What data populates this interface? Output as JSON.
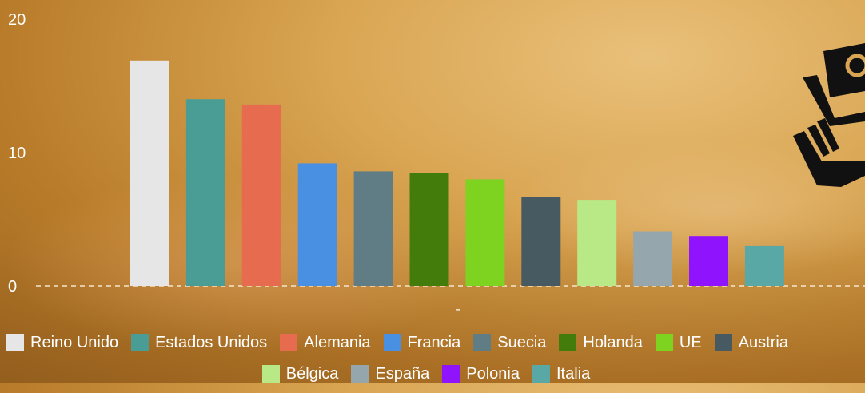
{
  "chart_data": {
    "type": "bar",
    "categories": [
      "Reino Unido",
      "Estados Unidos",
      "Alemania",
      "Francia",
      "Suecia",
      "Holanda",
      "UE",
      "Austria",
      "Bélgica",
      "España",
      "Polonia",
      "Italia"
    ],
    "values": [
      16.9,
      14.0,
      13.6,
      9.2,
      8.6,
      8.5,
      8.0,
      6.7,
      6.4,
      4.1,
      3.7,
      3.0
    ],
    "colors": [
      "#e6e6e6",
      "#4a9d95",
      "#e76c4f",
      "#4a90e2",
      "#607d86",
      "#437c0b",
      "#7ed321",
      "#485a61",
      "#b8e986",
      "#96a6ad",
      "#9013fe",
      "#5aa8a6"
    ],
    "ylim": [
      0,
      20
    ],
    "yticks": [
      0,
      10,
      20
    ],
    "grid": "dashed baseline at 0",
    "legend_position": "bottom",
    "xlabel": "-"
  }
}
